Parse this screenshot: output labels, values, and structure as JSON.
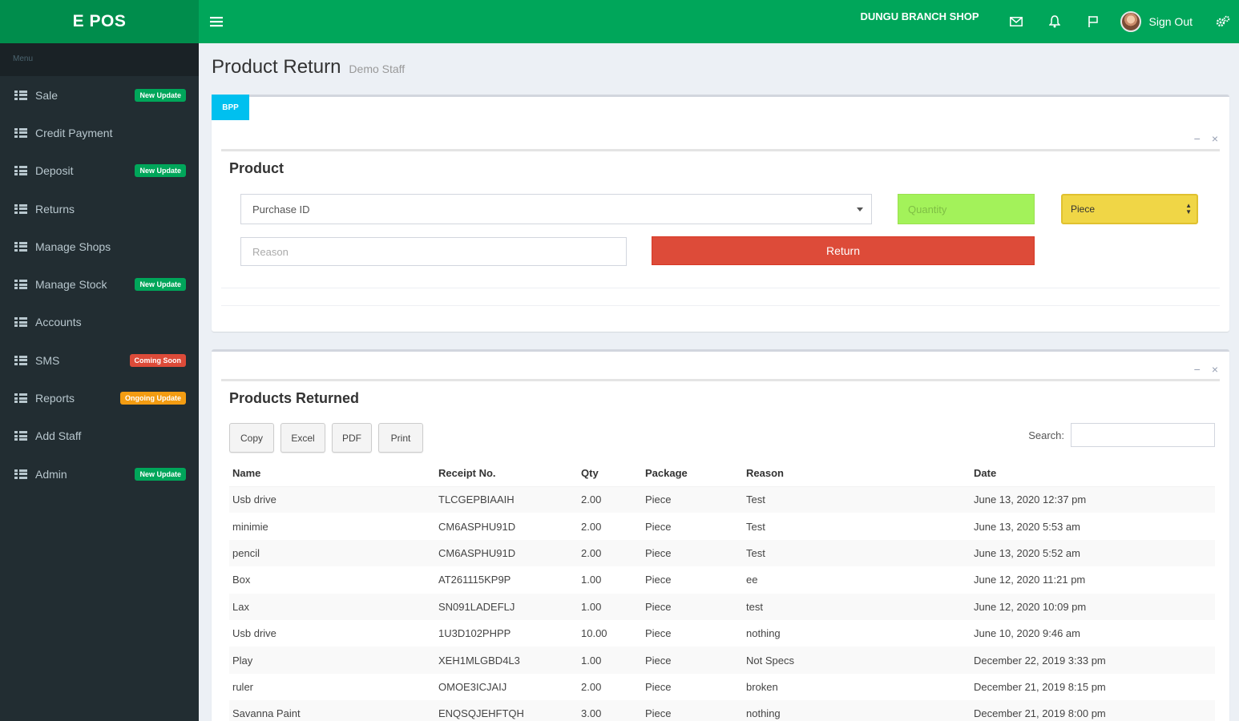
{
  "app": {
    "brand": "E POS"
  },
  "topbar": {
    "shop_name": "DUNGU BRANCH SHOP",
    "sign_out": "Sign Out"
  },
  "sidebar": {
    "header": "Menu",
    "items": [
      {
        "label": "Sale",
        "badge": "New Update",
        "badge_color": "green"
      },
      {
        "label": "Credit Payment",
        "badge": "",
        "badge_color": ""
      },
      {
        "label": "Deposit",
        "badge": "New Update",
        "badge_color": "green"
      },
      {
        "label": "Returns",
        "badge": "",
        "badge_color": ""
      },
      {
        "label": "Manage Shops",
        "badge": "",
        "badge_color": ""
      },
      {
        "label": "Manage Stock",
        "badge": "New Update",
        "badge_color": "green"
      },
      {
        "label": "Accounts",
        "badge": "",
        "badge_color": ""
      },
      {
        "label": "SMS",
        "badge": "Coming Soon",
        "badge_color": "red"
      },
      {
        "label": "Reports",
        "badge": "Ongoing Update",
        "badge_color": "orange"
      },
      {
        "label": "Add Staff",
        "badge": "",
        "badge_color": ""
      },
      {
        "label": "Admin",
        "badge": "New Update",
        "badge_color": "green"
      }
    ]
  },
  "page": {
    "title": "Product Return",
    "subtitle": "Demo Staff"
  },
  "product_box": {
    "tag_button": "BPP",
    "title": "Product",
    "purchase_select": "Purchase ID",
    "quantity_placeholder": "Quantity",
    "package_select": "Piece",
    "reason_placeholder": "Reason",
    "return_button": "Return"
  },
  "returned_box": {
    "title": "Products Returned",
    "buttons": [
      "Copy",
      "Excel",
      "PDF",
      "Print"
    ],
    "search_label": "Search:",
    "columns": [
      "Name",
      "Receipt No.",
      "Qty",
      "Package",
      "Reason",
      "Date"
    ],
    "rows": [
      [
        "Usb drive",
        "TLCGEPBIAAIH",
        "2.00",
        "Piece",
        "Test",
        "June 13, 2020 12:37 pm"
      ],
      [
        "minimie",
        "CM6ASPHU91D",
        "2.00",
        "Piece",
        "Test",
        "June 13, 2020 5:53 am"
      ],
      [
        "pencil",
        "CM6ASPHU91D",
        "2.00",
        "Piece",
        "Test",
        "June 13, 2020 5:52 am"
      ],
      [
        "Box",
        "AT261115KP9P",
        "1.00",
        "Piece",
        "ee",
        "June 12, 2020 11:21 pm"
      ],
      [
        "Lax",
        "SN091LADEFLJ",
        "1.00",
        "Piece",
        "test",
        "June 12, 2020 10:09 pm"
      ],
      [
        "Usb drive",
        "1U3D102PHPP",
        "10.00",
        "Piece",
        "nothing",
        "June 10, 2020 9:46 am"
      ],
      [
        "Play",
        "XEH1MLGBD4L3",
        "1.00",
        "Piece",
        "Not Specs",
        "December 22, 2019 3:33 pm"
      ],
      [
        "ruler",
        "OMOE3ICJAIJ",
        "2.00",
        "Piece",
        "broken",
        "December 21, 2019 8:15 pm"
      ],
      [
        "Savanna Paint",
        "ENQSQJEHFTQH",
        "3.00",
        "Piece",
        "nothing",
        "December 21, 2019 8:00 pm"
      ]
    ]
  },
  "colors": {
    "topbar": "#00a65a",
    "brand": "#008d4c",
    "sidebar": "#222d32",
    "return_button": "#dd4b39",
    "quantity_field": "#a3f25a",
    "package_select": "#f0d646",
    "tag_button": "#00c0ef"
  },
  "icons": [
    "menu-icon",
    "envelope-icon",
    "bell-icon",
    "flag-icon",
    "gears-icon",
    "grid-icon",
    "minimize-icon",
    "close-icon"
  ]
}
